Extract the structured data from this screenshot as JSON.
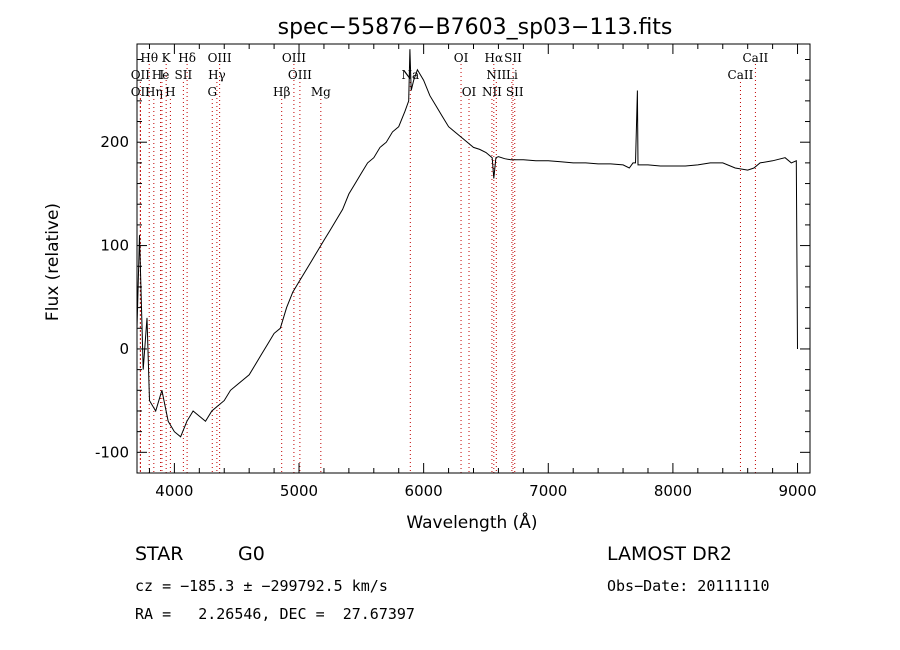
{
  "chart_data": {
    "type": "line",
    "title": "spec−55876−B7603_sp03−113.fits",
    "xlabel": "Wavelength (Å)",
    "ylabel": "Flux (relative)",
    "xlim": [
      3700,
      9100
    ],
    "ylim": [
      -120,
      295
    ],
    "x_ticks": [
      4000,
      5000,
      6000,
      7000,
      8000,
      9000
    ],
    "y_ticks": [
      -100,
      0,
      100,
      200
    ],
    "grid": false,
    "series": [
      {
        "x": [
          3700,
          3720,
          3750,
          3780,
          3800,
          3850,
          3900,
          3950,
          4000,
          4050,
          4100,
          4150,
          4200,
          4250,
          4300,
          4350,
          4400,
          4450,
          4500,
          4550,
          4600,
          4650,
          4700,
          4750,
          4800,
          4850,
          4900,
          4950,
          5000,
          5050,
          5100,
          5150,
          5200,
          5250,
          5300,
          5350,
          5400,
          5450,
          5500,
          5550,
          5600,
          5650,
          5700,
          5750,
          5800,
          5850,
          5880,
          5890,
          5900,
          5920,
          5950,
          6000,
          6050,
          6100,
          6150,
          6200,
          6250,
          6300,
          6350,
          6400,
          6450,
          6500,
          6550,
          6563,
          6580,
          6600,
          6650,
          6700,
          6800,
          6900,
          7000,
          7100,
          7200,
          7300,
          7400,
          7500,
          7600,
          7650,
          7680,
          7700,
          7715,
          7720,
          7740,
          7800,
          7900,
          8000,
          8100,
          8200,
          8300,
          8400,
          8500,
          8600,
          8650,
          8700,
          8800,
          8900,
          8950,
          8990,
          9000
        ],
        "y": [
          20,
          110,
          -20,
          30,
          -50,
          -60,
          -40,
          -70,
          -80,
          -85,
          -70,
          -60,
          -65,
          -70,
          -60,
          -55,
          -50,
          -40,
          -35,
          -30,
          -25,
          -15,
          -5,
          5,
          15,
          20,
          40,
          55,
          65,
          75,
          85,
          95,
          105,
          115,
          125,
          135,
          150,
          160,
          170,
          180,
          185,
          195,
          200,
          210,
          215,
          230,
          240,
          290,
          250,
          260,
          270,
          260,
          245,
          235,
          225,
          215,
          210,
          205,
          200,
          195,
          193,
          190,
          185,
          165,
          185,
          186,
          184,
          183,
          183,
          182,
          182,
          181,
          180,
          180,
          179,
          179,
          178,
          175,
          180,
          180,
          250,
          178,
          178,
          178,
          177,
          177,
          177,
          178,
          180,
          180,
          175,
          173,
          175,
          180,
          182,
          185,
          180,
          182,
          0
        ]
      }
    ],
    "lines": [
      {
        "label": "Hθ",
        "x": 3798
      },
      {
        "label": "K",
        "x": 3934
      },
      {
        "label": "Hδ",
        "x": 4102
      },
      {
        "label": "OIII",
        "x": 4363
      },
      {
        "label": "OIII",
        "x": 4959
      },
      {
        "label": "OI",
        "x": 6300
      },
      {
        "label": "Hα",
        "x": 6563
      },
      {
        "label": "SII",
        "x": 6717
      },
      {
        "label": "CaII",
        "x": 8662
      },
      {
        "label": "OII",
        "x": 3727
      },
      {
        "label": "He",
        "x": 3889
      },
      {
        "label": "I",
        "x": 3900
      },
      {
        "label": "SII",
        "x": 4072
      },
      {
        "label": "Hγ",
        "x": 4341
      },
      {
        "label": "OIII",
        "x": 5007
      },
      {
        "label": "Na",
        "x": 5893
      },
      {
        "label": "NII",
        "x": 6583
      },
      {
        "label": "Li",
        "x": 6708
      },
      {
        "label": "CaII",
        "x": 8542
      },
      {
        "label": "OII",
        "x": 3727
      },
      {
        "label": "Hη",
        "x": 3835
      },
      {
        "label": "H",
        "x": 3968
      },
      {
        "label": "G",
        "x": 4304
      },
      {
        "label": "Hβ",
        "x": 4861
      },
      {
        "label": "Mg",
        "x": 5175
      },
      {
        "label": "OI",
        "x": 6364
      },
      {
        "label": "NII",
        "x": 6548
      },
      {
        "label": "SII",
        "x": 6731
      }
    ]
  },
  "footer": {
    "class_label": "STAR",
    "subclass": "G0",
    "survey": "LAMOST DR2",
    "cz_line": "cz = −185.3 ± −299792.5 km/s",
    "obs_date": "Obs−Date: 20111110",
    "radec_line": "RA =   2.26546, DEC =  27.67397"
  }
}
